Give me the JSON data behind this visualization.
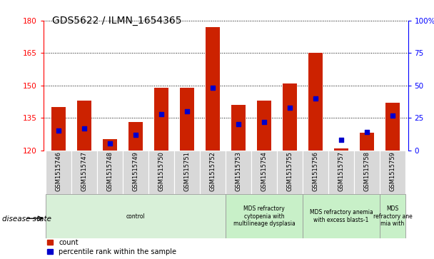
{
  "title": "GDS5622 / ILMN_1654365",
  "samples": [
    "GSM1515746",
    "GSM1515747",
    "GSM1515748",
    "GSM1515749",
    "GSM1515750",
    "GSM1515751",
    "GSM1515752",
    "GSM1515753",
    "GSM1515754",
    "GSM1515755",
    "GSM1515756",
    "GSM1515757",
    "GSM1515758",
    "GSM1515759"
  ],
  "counts": [
    140,
    143,
    125,
    133,
    149,
    149,
    177,
    141,
    143,
    151,
    165,
    121,
    128,
    142
  ],
  "percentile_ranks": [
    15,
    17,
    5,
    12,
    28,
    30,
    48,
    20,
    22,
    33,
    40,
    8,
    14,
    27
  ],
  "ylim_left": [
    120,
    180
  ],
  "ylim_right": [
    0,
    100
  ],
  "yticks_left": [
    120,
    135,
    150,
    165,
    180
  ],
  "yticks_right": [
    0,
    25,
    50,
    75,
    100
  ],
  "bar_color": "#cc2200",
  "dot_color": "#0000cc",
  "bar_width": 0.55,
  "base_value": 120,
  "disease_groups": [
    {
      "label": "control",
      "start": 0,
      "end": 7,
      "color": "#d8f0d8"
    },
    {
      "label": "MDS refractory\ncytopenia with\nmultilineage dysplasia",
      "start": 7,
      "end": 10,
      "color": "#c8f0c8"
    },
    {
      "label": "MDS refractory anemia\nwith excess blasts-1",
      "start": 10,
      "end": 13,
      "color": "#c8f0c8"
    },
    {
      "label": "MDS\nrefractory ane\nmia with",
      "start": 13,
      "end": 14,
      "color": "#c8f0c8"
    }
  ],
  "legend_items": [
    {
      "label": "count",
      "color": "#cc2200"
    },
    {
      "label": "percentile rank within the sample",
      "color": "#0000cc"
    }
  ],
  "disease_state_label": "disease state",
  "tick_bg_color": "#d8d8d8"
}
